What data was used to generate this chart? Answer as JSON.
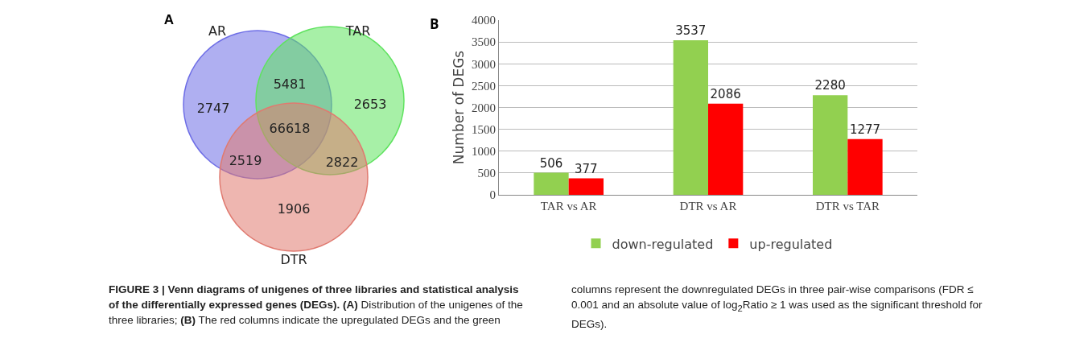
{
  "chart_data": [
    {
      "type": "other",
      "title": "A",
      "annotations": [
        "AR",
        "TAR",
        "DTR",
        "2747",
        "5481",
        "2653",
        "66618",
        "2519",
        "2822",
        "1906"
      ]
    },
    {
      "type": "bar",
      "title": "B",
      "ylabel": "Number of DEGs",
      "categories": [
        "TAR vs AR",
        "DTR vs AR",
        "DTR vs TAR"
      ],
      "series": [
        {
          "name": "down-regulated",
          "color": "#92d050",
          "values": [
            506,
            3537,
            2280
          ]
        },
        {
          "name": "up-regulated",
          "color": "#ff0000",
          "values": [
            377,
            2086,
            1277
          ]
        }
      ],
      "ylim": [
        0,
        4000
      ],
      "yticks": [
        0,
        500,
        1000,
        1500,
        2000,
        2500,
        3000,
        3500,
        4000
      ],
      "grid": "y",
      "legend": "bottom",
      "data_labels": true,
      "annotations": [
        "FIGURE 3 | Venn diagrams of unigenes of three libraries and statistical analysis of the differentially expressed genes (DEGs). (A)",
        " Distribution of the unigenes of the three libraries; ",
        "(B)",
        " The red columns indicate the upregulated DEGs and the green columns represent the downregulated DEGs in three pair-wise comparisons (FDR ≤ 0.001 and an absolute value of log$_{2}$Ratio ≥ 1 was used as the significant threshold for DEGs)."
      ]
    }
  ]
}
